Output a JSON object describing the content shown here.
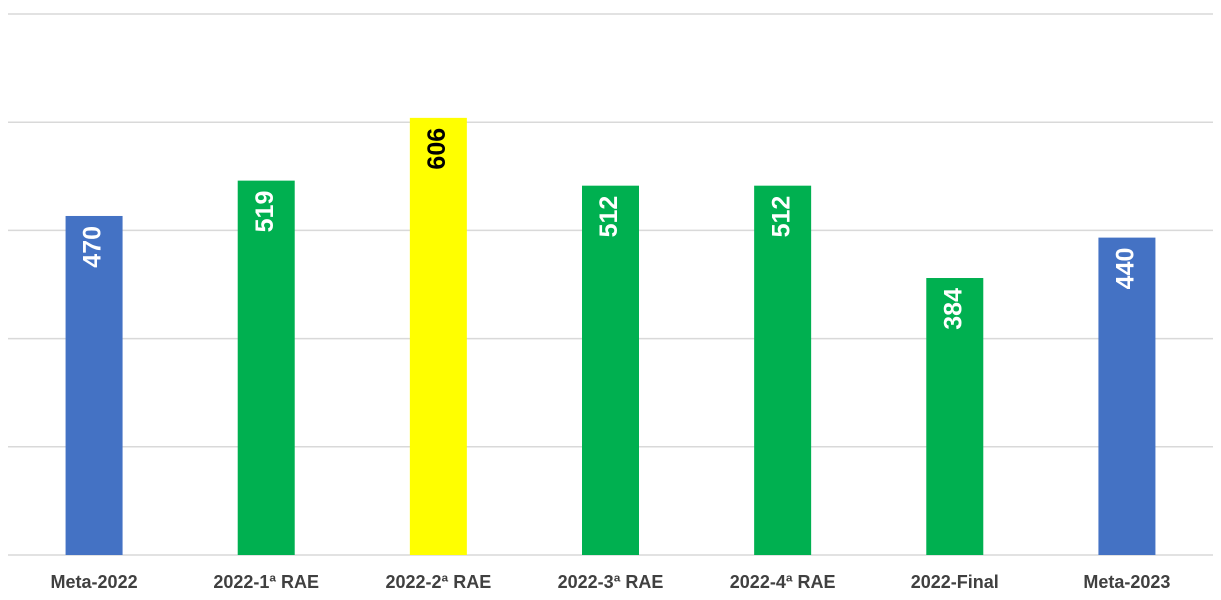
{
  "chart_data": {
    "type": "bar",
    "categories": [
      "Meta-2022",
      "2022-1ª RAE",
      "2022-2ª RAE",
      "2022-3ª RAE",
      "2022-4ª RAE",
      "2022-Final",
      "Meta-2023"
    ],
    "values": [
      470,
      519,
      606,
      512,
      512,
      384,
      440
    ],
    "colors": [
      "#4472c4",
      "#00b050",
      "#ffff00",
      "#00b050",
      "#00b050",
      "#00b050",
      "#4472c4"
    ],
    "label_colors": [
      "#ffffff",
      "#ffffff",
      "#000000",
      "#ffffff",
      "#ffffff",
      "#ffffff",
      "#ffffff"
    ],
    "ylim": [
      0,
      750
    ],
    "yticks": [
      0,
      150,
      300,
      450,
      600,
      750
    ],
    "grid": true
  }
}
